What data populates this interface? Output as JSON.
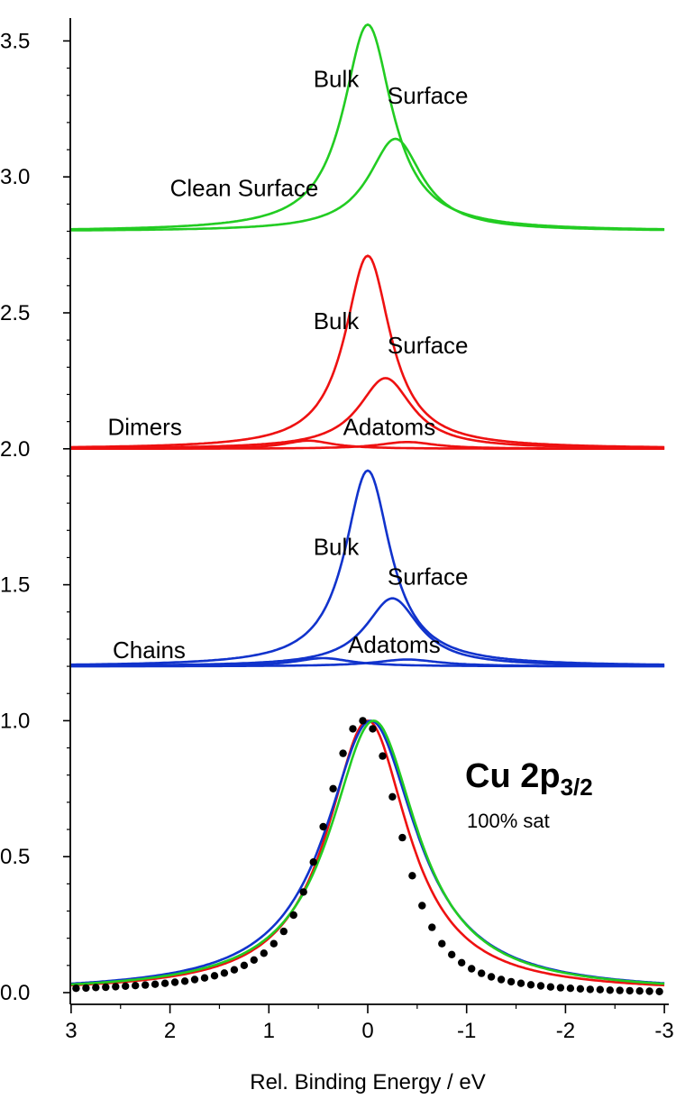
{
  "chart_data": {
    "type": "line",
    "title": "Cu 2p3/2",
    "title_main": "Cu 2p",
    "title_sub": "3/2",
    "subtitle": "100% sat",
    "xlabel": "Rel. Binding Energy / eV",
    "ylabel": "",
    "xlim": [
      3,
      -3
    ],
    "ylim": [
      0,
      3.6
    ],
    "x_reversed": true,
    "x_ticks": [
      3,
      2,
      1,
      0,
      -1,
      -2,
      -3
    ],
    "x_tick_labels": [
      "3",
      "2",
      "1",
      "0",
      "-1",
      "-2",
      "-3"
    ],
    "y_ticks": [
      0.0,
      0.5,
      1.0,
      1.5,
      2.0,
      2.5,
      3.0,
      3.5
    ],
    "y_tick_labels": [
      "0.0",
      "0.5",
      "1.0",
      "1.5",
      "2.0",
      "2.5",
      "3.0",
      "3.5"
    ],
    "grid": false,
    "colors": {
      "clean": "#22cc22",
      "dimers": "#ee1111",
      "chains": "#1133cc",
      "data": "#000000"
    },
    "panels": [
      {
        "name": "Clean Surface",
        "color": "#22cc22",
        "offset": 2.8,
        "components": [
          {
            "name": "Bulk",
            "center": 0.0,
            "height": 0.76,
            "width": 0.3
          },
          {
            "name": "Surface",
            "center": -0.28,
            "height": 0.34,
            "width": 0.33
          }
        ]
      },
      {
        "name": "Dimers",
        "color": "#ee1111",
        "offset": 2.0,
        "components": [
          {
            "name": "Bulk",
            "center": 0.0,
            "height": 0.71,
            "width": 0.28
          },
          {
            "name": "Surface",
            "center": -0.18,
            "height": 0.26,
            "width": 0.33
          },
          {
            "name": "Adatoms",
            "center": 0.6,
            "height": 0.03,
            "width": 0.3
          },
          {
            "name": "",
            "center": -0.4,
            "height": 0.025,
            "width": 0.35
          }
        ]
      },
      {
        "name": "Chains",
        "color": "#1133cc",
        "offset": 1.2,
        "components": [
          {
            "name": "Bulk",
            "center": 0.0,
            "height": 0.72,
            "width": 0.28
          },
          {
            "name": "Surface",
            "center": -0.25,
            "height": 0.25,
            "width": 0.33
          },
          {
            "name": "Adatoms",
            "center": 0.45,
            "height": 0.03,
            "width": 0.35
          },
          {
            "name": "",
            "center": -0.4,
            "height": 0.025,
            "width": 0.4
          }
        ]
      }
    ],
    "fits": [
      {
        "name": "Dimers",
        "color": "#ee1111",
        "center": 0.0,
        "width": 0.5
      },
      {
        "name": "Chains",
        "color": "#1133cc",
        "center": -0.03,
        "width": 0.56
      },
      {
        "name": "Clean Surface",
        "color": "#22cc22",
        "center": -0.06,
        "width": 0.54
      }
    ],
    "measured": {
      "x": [
        2.95,
        2.85,
        2.75,
        2.65,
        2.55,
        2.45,
        2.35,
        2.25,
        2.15,
        2.05,
        1.95,
        1.85,
        1.75,
        1.65,
        1.55,
        1.45,
        1.35,
        1.25,
        1.15,
        1.05,
        0.95,
        0.85,
        0.75,
        0.65,
        0.55,
        0.45,
        0.35,
        0.25,
        0.15,
        0.05,
        -0.05,
        -0.15,
        -0.25,
        -0.35,
        -0.45,
        -0.55,
        -0.65,
        -0.75,
        -0.85,
        -0.95,
        -1.05,
        -1.15,
        -1.25,
        -1.35,
        -1.45,
        -1.55,
        -1.65,
        -1.75,
        -1.85,
        -1.95,
        -2.05,
        -2.15,
        -2.25,
        -2.35,
        -2.45,
        -2.55,
        -2.65,
        -2.75,
        -2.85,
        -2.95
      ],
      "y": [
        0.016,
        0.017,
        0.019,
        0.02,
        0.022,
        0.024,
        0.026,
        0.028,
        0.031,
        0.034,
        0.038,
        0.042,
        0.048,
        0.054,
        0.062,
        0.072,
        0.084,
        0.1,
        0.12,
        0.145,
        0.18,
        0.225,
        0.285,
        0.37,
        0.48,
        0.61,
        0.75,
        0.88,
        0.97,
        1.0,
        0.97,
        0.87,
        0.72,
        0.57,
        0.43,
        0.32,
        0.24,
        0.18,
        0.14,
        0.11,
        0.088,
        0.071,
        0.058,
        0.048,
        0.04,
        0.034,
        0.029,
        0.025,
        0.021,
        0.018,
        0.016,
        0.014,
        0.012,
        0.011,
        0.009,
        0.008,
        0.007,
        0.006,
        0.005,
        0.004
      ]
    },
    "annotations": [
      {
        "text": "Bulk",
        "x": 0.55,
        "y": 3.33
      },
      {
        "text": "Surface",
        "x": -0.2,
        "y": 3.27
      },
      {
        "text": "Clean Surface",
        "x": 2.0,
        "y": 2.93
      },
      {
        "text": "Bulk",
        "x": 0.55,
        "y": 2.44
      },
      {
        "text": "Surface",
        "x": -0.2,
        "y": 2.35
      },
      {
        "text": "Dimers",
        "x": 2.63,
        "y": 2.05
      },
      {
        "text": "Adatoms",
        "x": 0.25,
        "y": 2.05
      },
      {
        "text": "Bulk",
        "x": 0.55,
        "y": 1.61
      },
      {
        "text": "Surface",
        "x": -0.2,
        "y": 1.5
      },
      {
        "text": "Chains",
        "x": 2.58,
        "y": 1.23
      },
      {
        "text": "Adatoms",
        "x": 0.2,
        "y": 1.25
      }
    ]
  }
}
